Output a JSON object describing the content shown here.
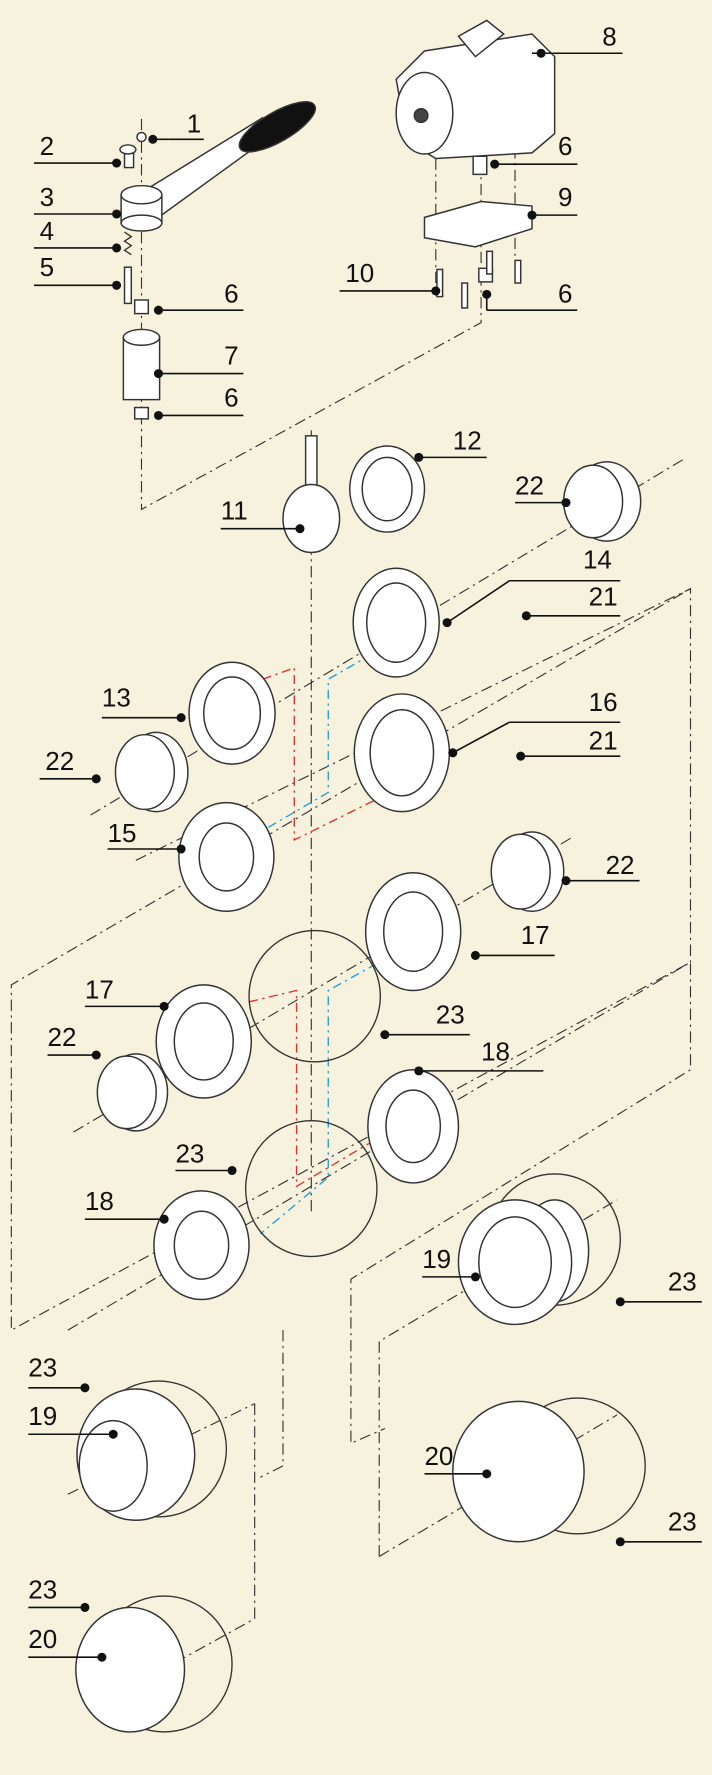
{
  "callouts": [
    "1",
    "2",
    "3",
    "4",
    "5",
    "6",
    "7",
    "6",
    "8",
    "6",
    "9",
    "10",
    "6",
    "11",
    "12",
    "22",
    "14",
    "21",
    "13",
    "22",
    "16",
    "21",
    "15",
    "22",
    "17",
    "17",
    "22",
    "23",
    "18",
    "23",
    "18",
    "19",
    "23",
    "23",
    "19",
    "20",
    "23",
    "23",
    "20"
  ]
}
